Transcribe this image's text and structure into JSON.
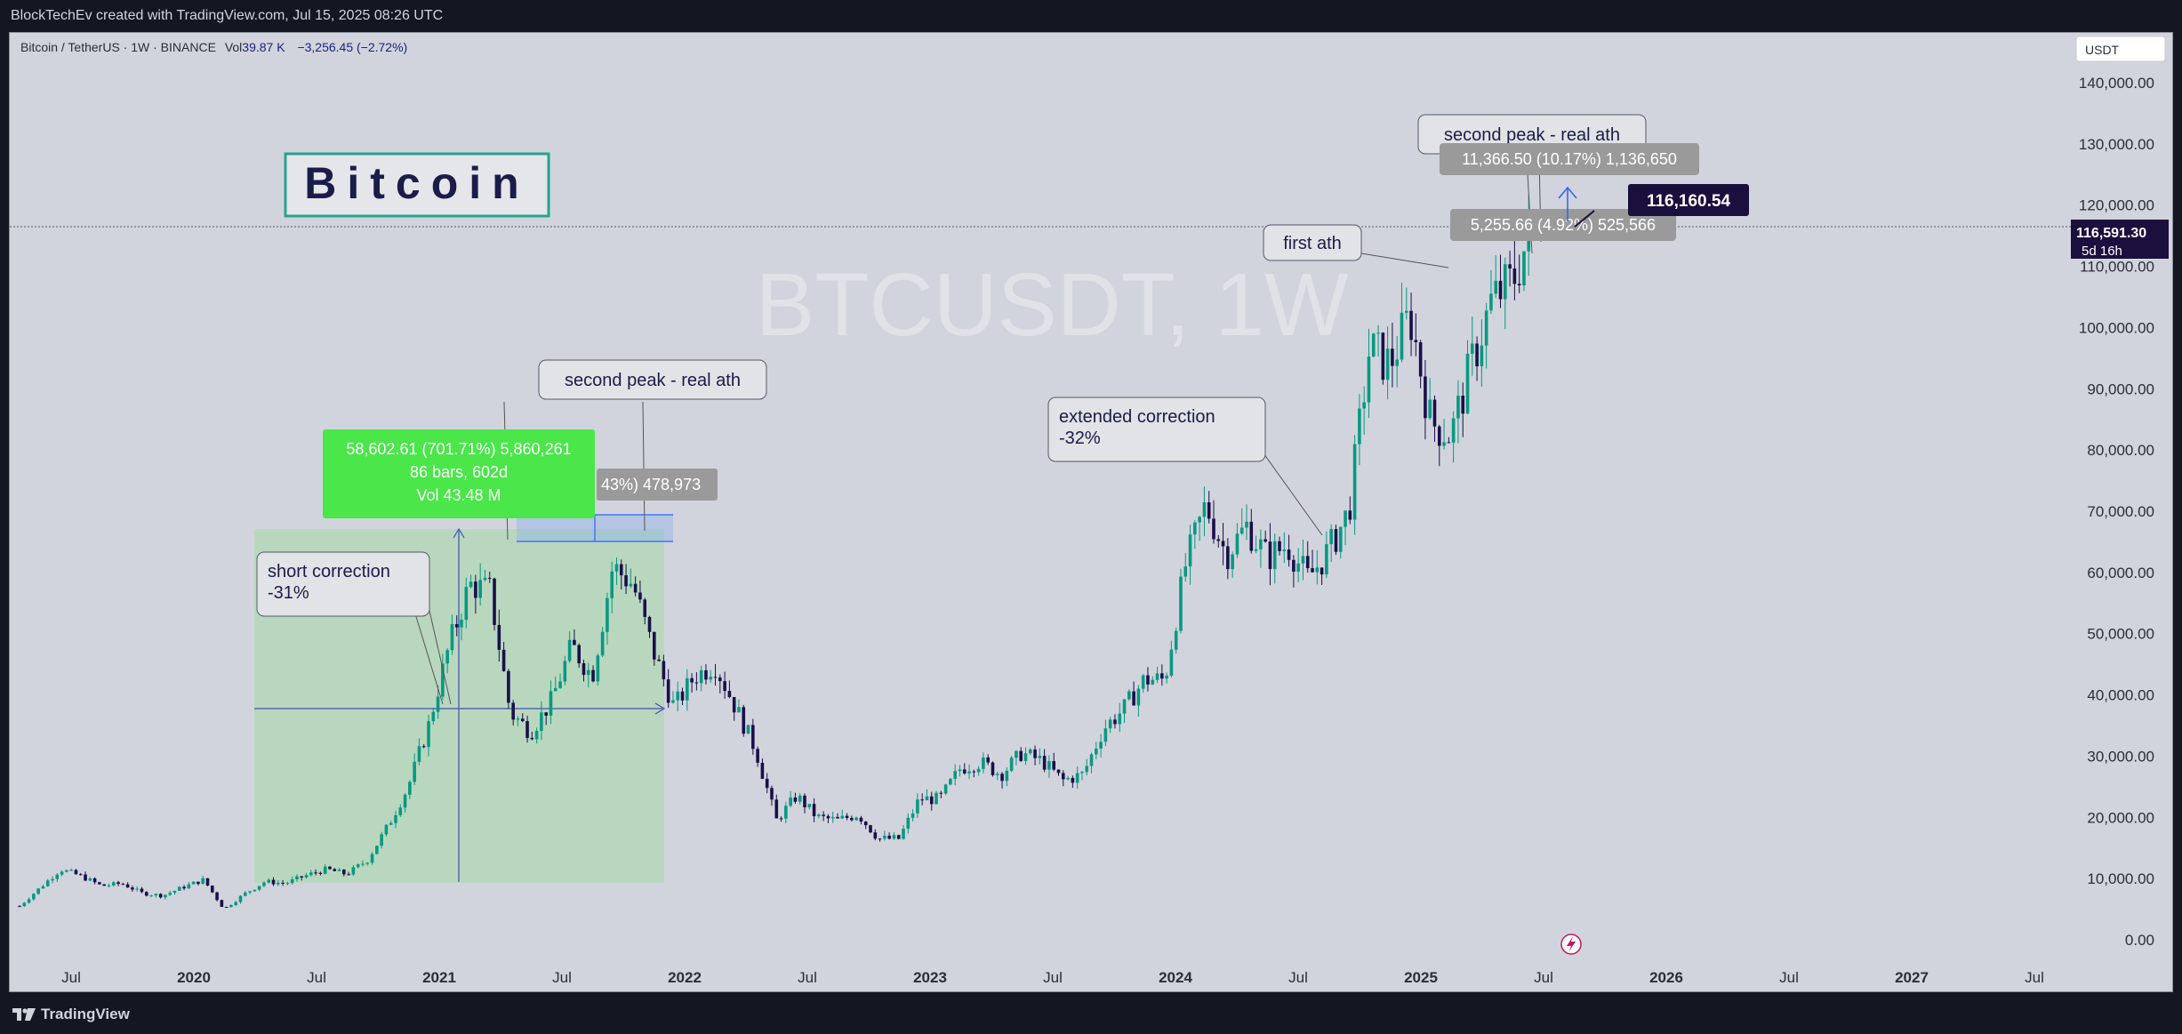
{
  "header": {
    "credit": "BlockTechEv created with TradingView.com, Jul 15, 2025 08:26 UTC"
  },
  "legend": {
    "symbol": "Bitcoin / TetherUS · 1W · BINANCE",
    "vol_label": "Vol",
    "vol_value": "39.87 K",
    "change": "−3,256.45 (−2.72%)"
  },
  "currency_button": "USDT",
  "watermark": "BTCUSDT, 1W",
  "title_box": "Bitcoin",
  "footer": {
    "brand": "TradingView"
  },
  "price_axis": {
    "ticks": [
      "140,000.00",
      "130,000.00",
      "120,000.00",
      "110,000.00",
      "100,000.00",
      "90,000.00",
      "80,000.00",
      "70,000.00",
      "60,000.00",
      "50,000.00",
      "40,000.00",
      "30,000.00",
      "20,000.00",
      "10,000.00",
      "0.00"
    ],
    "current_price": "116,591.30",
    "countdown": "5d 16h"
  },
  "time_axis": {
    "ticks": [
      "Jul",
      "2020",
      "Jul",
      "2021",
      "Jul",
      "2022",
      "Jul",
      "2023",
      "Jul",
      "2024",
      "Jul",
      "2025",
      "Jul",
      "2026",
      "Jul",
      "2027",
      "Jul"
    ]
  },
  "annotations": {
    "short_correction": [
      "short correction",
      "-31%"
    ],
    "second_peak_2021": "second peak - real ath",
    "extended_correction": [
      "extended correction",
      "-32%"
    ],
    "first_ath": "first ath",
    "second_peak_2025": "second peak - real ath"
  },
  "measurements": {
    "big_range": {
      "line1": "58,602.61 (701.71%) 5,860,261",
      "line2": "86 bars, 602d",
      "line3": "Vol 43.48 M"
    },
    "range_2021": "43%) 478,973",
    "range_2025_top": "11,366.50 (10.17%) 1,136,650",
    "range_2025_mid": "5,255.66 (4.92%) 525,566",
    "price_label": "116,160.54"
  },
  "colors": {
    "up": "#089981",
    "down": "#1a0f4a",
    "background": "#d1d4dc",
    "measure_green": "#4ae64a",
    "grey_label": "#9a9a9a",
    "current_price_bg": "#1a0f3d"
  },
  "chart_data": {
    "type": "candlestick",
    "title": "Bitcoin / TetherUS · 1W · BINANCE",
    "ylim": [
      0,
      145000
    ],
    "y_ticks": [
      0,
      10000,
      20000,
      30000,
      40000,
      50000,
      60000,
      70000,
      80000,
      90000,
      100000,
      110000,
      120000,
      130000,
      140000
    ],
    "x_labels": [
      "Jul",
      "2020",
      "Jul",
      "2021",
      "Jul",
      "2022",
      "Jul",
      "2023",
      "Jul",
      "2024",
      "Jul",
      "2025",
      "Jul",
      "2026",
      "Jul",
      "2027",
      "Jul"
    ],
    "close_path": [
      [
        "2019-05",
        5500
      ],
      [
        "2019-06",
        8500
      ],
      [
        "2019-07",
        11500
      ],
      [
        "2019-08",
        10400
      ],
      [
        "2019-09",
        8800
      ],
      [
        "2019-10",
        9200
      ],
      [
        "2019-11",
        7600
      ],
      [
        "2019-12",
        7200
      ],
      [
        "2020-01",
        8600
      ],
      [
        "2020-02",
        9800
      ],
      [
        "2020-03",
        5000
      ],
      [
        "2020-04",
        7500
      ],
      [
        "2020-05",
        9500
      ],
      [
        "2020-06",
        9200
      ],
      [
        "2020-07",
        10500
      ],
      [
        "2020-08",
        11500
      ],
      [
        "2020-09",
        10700
      ],
      [
        "2020-10",
        13000
      ],
      [
        "2020-11",
        18500
      ],
      [
        "2020-12",
        25000
      ],
      [
        "2021-01",
        35000
      ],
      [
        "2021-02",
        48000
      ],
      [
        "2021-03",
        58000
      ],
      [
        "2021-04",
        57000
      ],
      [
        "2021-05",
        37000
      ],
      [
        "2021-06",
        34000
      ],
      [
        "2021-07",
        39000
      ],
      [
        "2021-08",
        48000
      ],
      [
        "2021-09",
        43000
      ],
      [
        "2021-10",
        61000
      ],
      [
        "2021-11",
        58000
      ],
      [
        "2021-12",
        47000
      ],
      [
        "2022-01",
        38000
      ],
      [
        "2022-02",
        43000
      ],
      [
        "2022-03",
        45000
      ],
      [
        "2022-04",
        38000
      ],
      [
        "2022-05",
        31000
      ],
      [
        "2022-06",
        19500
      ],
      [
        "2022-07",
        23500
      ],
      [
        "2022-08",
        20000
      ],
      [
        "2022-09",
        19500
      ],
      [
        "2022-10",
        20500
      ],
      [
        "2022-11",
        16500
      ],
      [
        "2022-12",
        16500
      ],
      [
        "2023-01",
        23000
      ],
      [
        "2023-02",
        23000
      ],
      [
        "2023-03",
        28000
      ],
      [
        "2023-04",
        29000
      ],
      [
        "2023-05",
        27000
      ],
      [
        "2023-06",
        30500
      ],
      [
        "2023-07",
        29200
      ],
      [
        "2023-08",
        26000
      ],
      [
        "2023-09",
        27000
      ],
      [
        "2023-10",
        34500
      ],
      [
        "2023-11",
        37700
      ],
      [
        "2023-12",
        42500
      ],
      [
        "2024-01",
        42500
      ],
      [
        "2024-02",
        61000
      ],
      [
        "2024-03",
        71000
      ],
      [
        "2024-04",
        63000
      ],
      [
        "2024-05",
        67500
      ],
      [
        "2024-06",
        62500
      ],
      [
        "2024-07",
        64500
      ],
      [
        "2024-08",
        59000
      ],
      [
        "2024-09",
        63500
      ],
      [
        "2024-10",
        70000
      ],
      [
        "2024-11",
        96500
      ],
      [
        "2024-12",
        94000
      ],
      [
        "2025-01",
        102000
      ],
      [
        "2025-02",
        84500
      ],
      [
        "2025-03",
        82500
      ],
      [
        "2025-04",
        94000
      ],
      [
        "2025-05",
        104500
      ],
      [
        "2025-06",
        107500
      ],
      [
        "2025-07",
        116591
      ]
    ]
  }
}
